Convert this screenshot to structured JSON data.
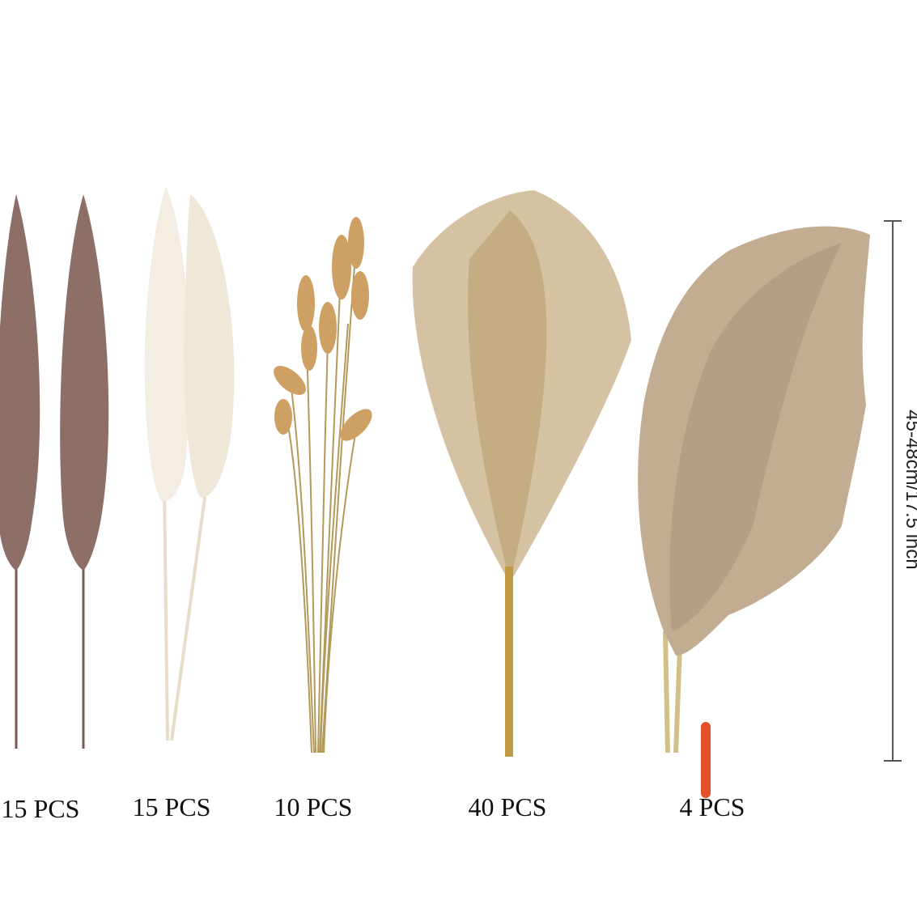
{
  "labels": [
    "15 PCS",
    "15 PCS",
    "10 PCS",
    "40 PCS",
    "4 PCS"
  ],
  "dimension": "45-48cm/17.5 inch"
}
